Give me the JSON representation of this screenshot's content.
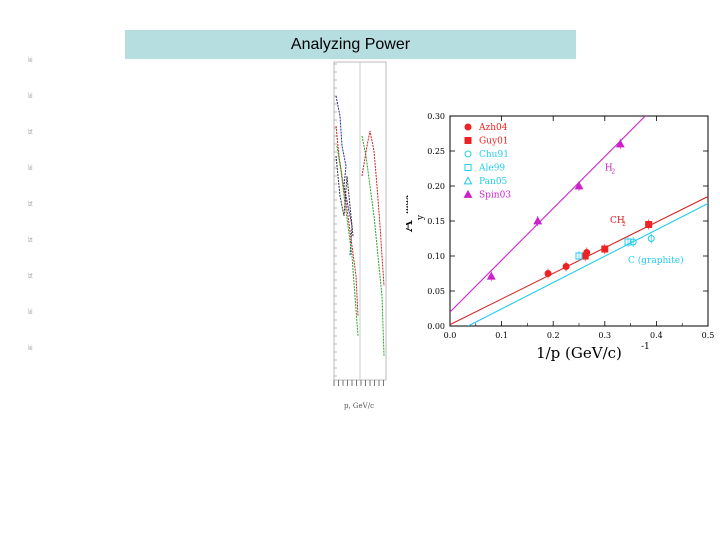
{
  "slide": {
    "title": "Analyzing Power",
    "left_tick_glyphs": [
      "lai",
      "lal",
      "lzt",
      "lal",
      "lzt",
      "lzt",
      "lzt",
      "lal",
      "lai"
    ]
  },
  "mini_plot": {
    "colors": [
      "#2a2a9a",
      "#cc2222",
      "#22aa22",
      "#333333"
    ],
    "xlabel": "p, GeV/c"
  },
  "chart_data": {
    "type": "scatter",
    "xlabel": "1/p (GeV/c)",
    "xlabel_exponent": "-1",
    "ylabel": "A",
    "ylabel_sub": "y",
    "ylabel_super": "max",
    "xlim": [
      0.0,
      0.5
    ],
    "ylim": [
      0.0,
      0.3
    ],
    "xticks": [
      0.0,
      0.1,
      0.2,
      0.3,
      0.4,
      0.5
    ],
    "xtick_labels": [
      "0.0",
      "0.1",
      "0.2",
      "0.3",
      "0.4",
      "0.5"
    ],
    "yticks": [
      0.0,
      0.05,
      0.1,
      0.15,
      0.2,
      0.25,
      0.3
    ],
    "ytick_labels": [
      "0.00",
      "0.05",
      "0.10",
      "0.15",
      "0.20",
      "0.25",
      "0.30"
    ],
    "legend": [
      {
        "label": "Azh04",
        "marker": "circle",
        "filled": true,
        "color": "#ee2222"
      },
      {
        "label": "Guy01",
        "marker": "square",
        "filled": true,
        "color": "#ee2222"
      },
      {
        "label": "Chu91",
        "marker": "circle",
        "filled": false,
        "color": "#22ccee"
      },
      {
        "label": "Ale99",
        "marker": "square",
        "filled": false,
        "color": "#22ccee"
      },
      {
        "label": "Pan05",
        "marker": "triangle",
        "filled": false,
        "color": "#22ccee"
      },
      {
        "label": "Spin03",
        "marker": "triangle",
        "filled": true,
        "color": "#cc22cc"
      }
    ],
    "series": [
      {
        "name": "Azh04",
        "color": "#ee2222",
        "marker": "circle",
        "filled": true,
        "x": [
          0.19,
          0.225,
          0.265
        ],
        "y": [
          0.075,
          0.085,
          0.105
        ]
      },
      {
        "name": "Guy01",
        "color": "#ee2222",
        "marker": "square",
        "filled": true,
        "x": [
          0.262,
          0.3,
          0.385
        ],
        "y": [
          0.1,
          0.11,
          0.145
        ]
      },
      {
        "name": "Chu91",
        "color": "#22ccee",
        "marker": "circle",
        "filled": false,
        "x": [
          0.355,
          0.39
        ],
        "y": [
          0.12,
          0.125
        ]
      },
      {
        "name": "Ale99",
        "color": "#22ccee",
        "marker": "square",
        "filled": false,
        "x": [
          0.25,
          0.345
        ],
        "y": [
          0.1,
          0.12
        ]
      },
      {
        "name": "Pan05",
        "color": "#22ccee",
        "marker": "triangle",
        "filled": false,
        "x": [],
        "y": []
      },
      {
        "name": "Spin03",
        "color": "#cc22cc",
        "marker": "triangle",
        "filled": true,
        "x": [
          0.08,
          0.17,
          0.25,
          0.33
        ],
        "y": [
          0.071,
          0.15,
          0.2,
          0.26
        ]
      }
    ],
    "fit_lines": [
      {
        "label": "H",
        "label_sub": "2",
        "color": "#cc22cc",
        "x": [
          0.0,
          0.5
        ],
        "y": [
          0.02,
          0.39
        ],
        "label_at": [
          0.3,
          0.222
        ]
      },
      {
        "label": "CH",
        "label_sub": "2",
        "color": "#dd2222",
        "x": [
          0.0,
          0.5
        ],
        "y": [
          0.002,
          0.185
        ],
        "label_at": [
          0.31,
          0.147
        ]
      },
      {
        "label": "C (graphite)",
        "label_sub": "",
        "color": "#22ccee",
        "x": [
          0.035,
          0.5
        ],
        "y": [
          0.0,
          0.175
        ],
        "label_at": [
          0.345,
          0.09
        ]
      }
    ]
  }
}
